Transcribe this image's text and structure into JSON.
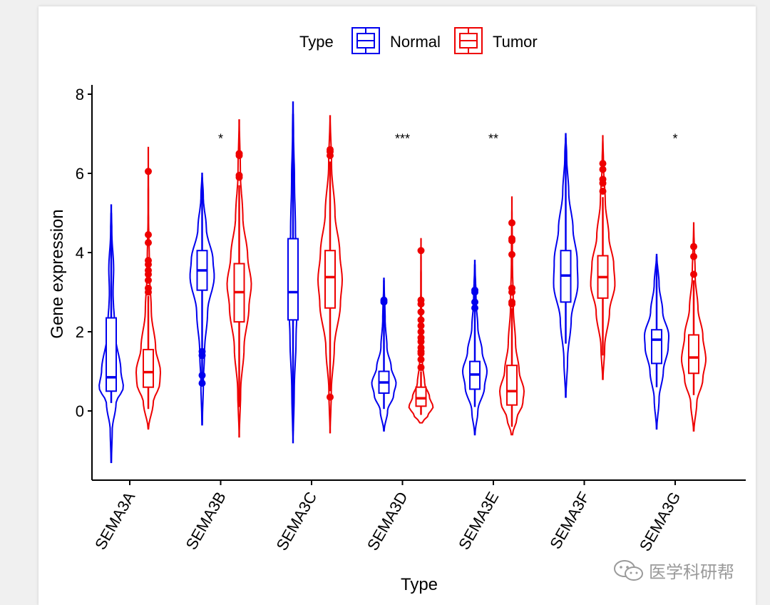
{
  "chart_data": {
    "type": "violin",
    "title": "",
    "xlabel": "Type",
    "ylabel": "Gene expression",
    "ylim": [
      -1.75,
      8.25
    ],
    "yticks": [
      0,
      2,
      4,
      6,
      8
    ],
    "categories": [
      "SEMA3A",
      "SEMA3B",
      "SEMA3C",
      "SEMA3D",
      "SEMA3E",
      "SEMA3F",
      "SEMA3G"
    ],
    "legend": {
      "title": "Type",
      "position": "top",
      "entries": [
        {
          "name": "Normal",
          "color": "#0000ee"
        },
        {
          "name": "Tumor",
          "color": "#ee0000"
        }
      ]
    },
    "significance": [
      "",
      "*",
      "",
      "***",
      "**",
      "",
      "*"
    ],
    "significance_y": 6.8,
    "series": [
      {
        "name": "Normal",
        "color": "#0000ee",
        "groups": [
          {
            "min": -1.3,
            "max": 5.2,
            "q1": 0.5,
            "median": 0.85,
            "q3": 2.35,
            "wlo": 0.2,
            "whi": 5.0,
            "density": [
              [
                -1.3,
                0.02
              ],
              [
                -0.5,
                0.08
              ],
              [
                0.2,
                0.4
              ],
              [
                0.6,
                1.0
              ],
              [
                1.0,
                0.8
              ],
              [
                2.0,
                0.3
              ],
              [
                3.0,
                0.15
              ],
              [
                3.6,
                0.2
              ],
              [
                4.5,
                0.05
              ],
              [
                5.2,
                0.01
              ]
            ],
            "outliers": []
          },
          {
            "min": -0.35,
            "max": 6.0,
            "q1": 3.05,
            "median": 3.55,
            "q3": 4.05,
            "wlo": 0.7,
            "whi": 5.9,
            "density": [
              [
                -0.35,
                0.02
              ],
              [
                0.7,
                0.1
              ],
              [
                1.5,
                0.2
              ],
              [
                2.5,
                0.45
              ],
              [
                3.4,
                1.0
              ],
              [
                3.8,
                0.9
              ],
              [
                4.6,
                0.35
              ],
              [
                5.4,
                0.1
              ],
              [
                6.0,
                0.01
              ]
            ],
            "outliers": [
              0.7,
              0.9,
              1.4,
              1.5
            ]
          },
          {
            "min": -0.8,
            "max": 7.8,
            "q1": 2.3,
            "median": 3.0,
            "q3": 4.35,
            "wlo": -0.5,
            "whi": 7.5,
            "density": [
              [
                -0.8,
                0.01
              ],
              [
                0.5,
                0.1
              ],
              [
                1.8,
                0.25
              ],
              [
                2.8,
                0.35
              ],
              [
                3.6,
                0.3
              ],
              [
                4.6,
                0.2
              ],
              [
                5.8,
                0.12
              ],
              [
                7.0,
                0.04
              ],
              [
                7.8,
                0.01
              ]
            ],
            "outliers": []
          },
          {
            "min": -0.5,
            "max": 3.35,
            "q1": 0.45,
            "median": 0.72,
            "q3": 1.0,
            "wlo": 0.05,
            "whi": 3.3,
            "density": [
              [
                -0.5,
                0.02
              ],
              [
                0.0,
                0.3
              ],
              [
                0.4,
                0.8
              ],
              [
                0.7,
                1.0
              ],
              [
                1.1,
                0.6
              ],
              [
                1.6,
                0.25
              ],
              [
                2.3,
                0.1
              ],
              [
                3.35,
                0.01
              ]
            ],
            "outliers": [
              2.75,
              2.8
            ]
          },
          {
            "min": -0.6,
            "max": 3.8,
            "q1": 0.55,
            "median": 0.92,
            "q3": 1.25,
            "wlo": 0.1,
            "whi": 3.7,
            "density": [
              [
                -0.6,
                0.02
              ],
              [
                0.0,
                0.25
              ],
              [
                0.6,
                0.8
              ],
              [
                1.0,
                1.0
              ],
              [
                1.5,
                0.6
              ],
              [
                2.1,
                0.25
              ],
              [
                2.8,
                0.1
              ],
              [
                3.8,
                0.01
              ]
            ],
            "outliers": [
              2.6,
              2.75,
              3.0,
              3.05
            ]
          },
          {
            "min": 0.35,
            "max": 7.0,
            "q1": 2.75,
            "median": 3.42,
            "q3": 4.05,
            "wlo": 1.7,
            "whi": 6.9,
            "density": [
              [
                0.35,
                0.02
              ],
              [
                1.3,
                0.15
              ],
              [
                2.3,
                0.45
              ],
              [
                3.2,
                1.0
              ],
              [
                3.8,
                0.95
              ],
              [
                4.6,
                0.6
              ],
              [
                5.5,
                0.25
              ],
              [
                6.4,
                0.08
              ],
              [
                7.0,
                0.01
              ]
            ],
            "outliers": []
          },
          {
            "min": -0.45,
            "max": 3.95,
            "q1": 1.2,
            "median": 1.8,
            "q3": 2.05,
            "wlo": 0.6,
            "whi": 3.9,
            "density": [
              [
                -0.45,
                0.02
              ],
              [
                0.3,
                0.2
              ],
              [
                1.0,
                0.55
              ],
              [
                1.6,
                0.95
              ],
              [
                1.9,
                1.0
              ],
              [
                2.5,
                0.5
              ],
              [
                3.2,
                0.2
              ],
              [
                3.95,
                0.01
              ]
            ],
            "outliers": []
          }
        ]
      },
      {
        "name": "Tumor",
        "color": "#ee0000",
        "groups": [
          {
            "min": -0.45,
            "max": 6.65,
            "q1": 0.6,
            "median": 0.98,
            "q3": 1.55,
            "wlo": 0.05,
            "whi": 2.9,
            "density": [
              [
                -0.45,
                0.02
              ],
              [
                0.2,
                0.4
              ],
              [
                0.7,
                0.95
              ],
              [
                1.0,
                1.0
              ],
              [
                1.6,
                0.6
              ],
              [
                2.5,
                0.25
              ],
              [
                3.5,
                0.1
              ],
              [
                5.0,
                0.02
              ],
              [
                6.65,
                0.005
              ]
            ],
            "outliers": [
              3.0,
              3.1,
              3.3,
              3.45,
              3.55,
              3.7,
              3.8,
              4.25,
              4.45,
              6.05
            ]
          },
          {
            "min": -0.65,
            "max": 7.35,
            "q1": 2.25,
            "median": 3.0,
            "q3": 3.72,
            "wlo": 0.1,
            "whi": 5.7,
            "density": [
              [
                -0.65,
                0.01
              ],
              [
                0.5,
                0.12
              ],
              [
                1.6,
                0.4
              ],
              [
                2.6,
                0.8
              ],
              [
                3.2,
                1.0
              ],
              [
                3.9,
                0.7
              ],
              [
                4.9,
                0.3
              ],
              [
                6.0,
                0.1
              ],
              [
                7.35,
                0.01
              ]
            ],
            "outliers": [
              5.9,
              5.95,
              6.45,
              6.5
            ]
          },
          {
            "min": -0.55,
            "max": 7.45,
            "q1": 2.6,
            "median": 3.38,
            "q3": 4.05,
            "wlo": 0.5,
            "whi": 6.3,
            "density": [
              [
                -0.55,
                0.01
              ],
              [
                0.5,
                0.1
              ],
              [
                1.6,
                0.35
              ],
              [
                2.7,
                0.85
              ],
              [
                3.3,
                1.0
              ],
              [
                4.0,
                0.8
              ],
              [
                5.0,
                0.4
              ],
              [
                6.2,
                0.12
              ],
              [
                7.45,
                0.01
              ]
            ],
            "outliers": [
              0.35,
              6.45,
              6.55,
              6.6
            ]
          },
          {
            "min": -0.3,
            "max": 4.35,
            "q1": 0.12,
            "median": 0.32,
            "q3": 0.6,
            "wlo": -0.1,
            "whi": 1.0,
            "density": [
              [
                -0.3,
                0.1
              ],
              [
                -0.1,
                0.6
              ],
              [
                0.1,
                1.0
              ],
              [
                0.35,
                0.7
              ],
              [
                0.7,
                0.3
              ],
              [
                1.2,
                0.12
              ],
              [
                2.0,
                0.05
              ],
              [
                3.0,
                0.02
              ],
              [
                4.35,
                0.005
              ]
            ],
            "outliers": [
              1.1,
              1.3,
              1.45,
              1.5,
              1.6,
              1.75,
              1.85,
              2.0,
              2.15,
              2.3,
              2.5,
              2.7,
              2.8,
              4.05
            ]
          },
          {
            "min": -0.6,
            "max": 5.4,
            "q1": 0.15,
            "median": 0.5,
            "q3": 1.15,
            "wlo": -0.4,
            "whi": 2.6,
            "density": [
              [
                -0.6,
                0.05
              ],
              [
                -0.2,
                0.4
              ],
              [
                0.2,
                0.9
              ],
              [
                0.5,
                1.0
              ],
              [
                1.0,
                0.6
              ],
              [
                1.7,
                0.3
              ],
              [
                2.6,
                0.12
              ],
              [
                3.8,
                0.04
              ],
              [
                5.4,
                0.005
              ]
            ],
            "outliers": [
              2.7,
              2.75,
              3.0,
              3.1,
              3.95,
              4.3,
              4.35,
              4.75
            ]
          },
          {
            "min": 0.8,
            "max": 6.95,
            "q1": 2.85,
            "median": 3.38,
            "q3": 3.92,
            "wlo": 1.4,
            "whi": 5.4,
            "density": [
              [
                0.8,
                0.02
              ],
              [
                1.6,
                0.15
              ],
              [
                2.5,
                0.55
              ],
              [
                3.2,
                1.0
              ],
              [
                3.7,
                0.9
              ],
              [
                4.4,
                0.5
              ],
              [
                5.3,
                0.2
              ],
              [
                6.2,
                0.06
              ],
              [
                6.95,
                0.005
              ]
            ],
            "outliers": [
              5.55,
              5.75,
              5.85,
              6.1,
              6.25
            ]
          },
          {
            "min": -0.5,
            "max": 4.75,
            "q1": 0.95,
            "median": 1.35,
            "q3": 1.92,
            "wlo": 0.4,
            "whi": 3.3,
            "density": [
              [
                -0.5,
                0.02
              ],
              [
                0.2,
                0.25
              ],
              [
                0.8,
                0.75
              ],
              [
                1.3,
                1.0
              ],
              [
                1.9,
                0.75
              ],
              [
                2.6,
                0.35
              ],
              [
                3.4,
                0.12
              ],
              [
                4.75,
                0.005
              ]
            ],
            "outliers": [
              3.45,
              3.9,
              4.15
            ]
          }
        ]
      }
    ]
  },
  "watermark": {
    "text": "医学科研帮"
  }
}
